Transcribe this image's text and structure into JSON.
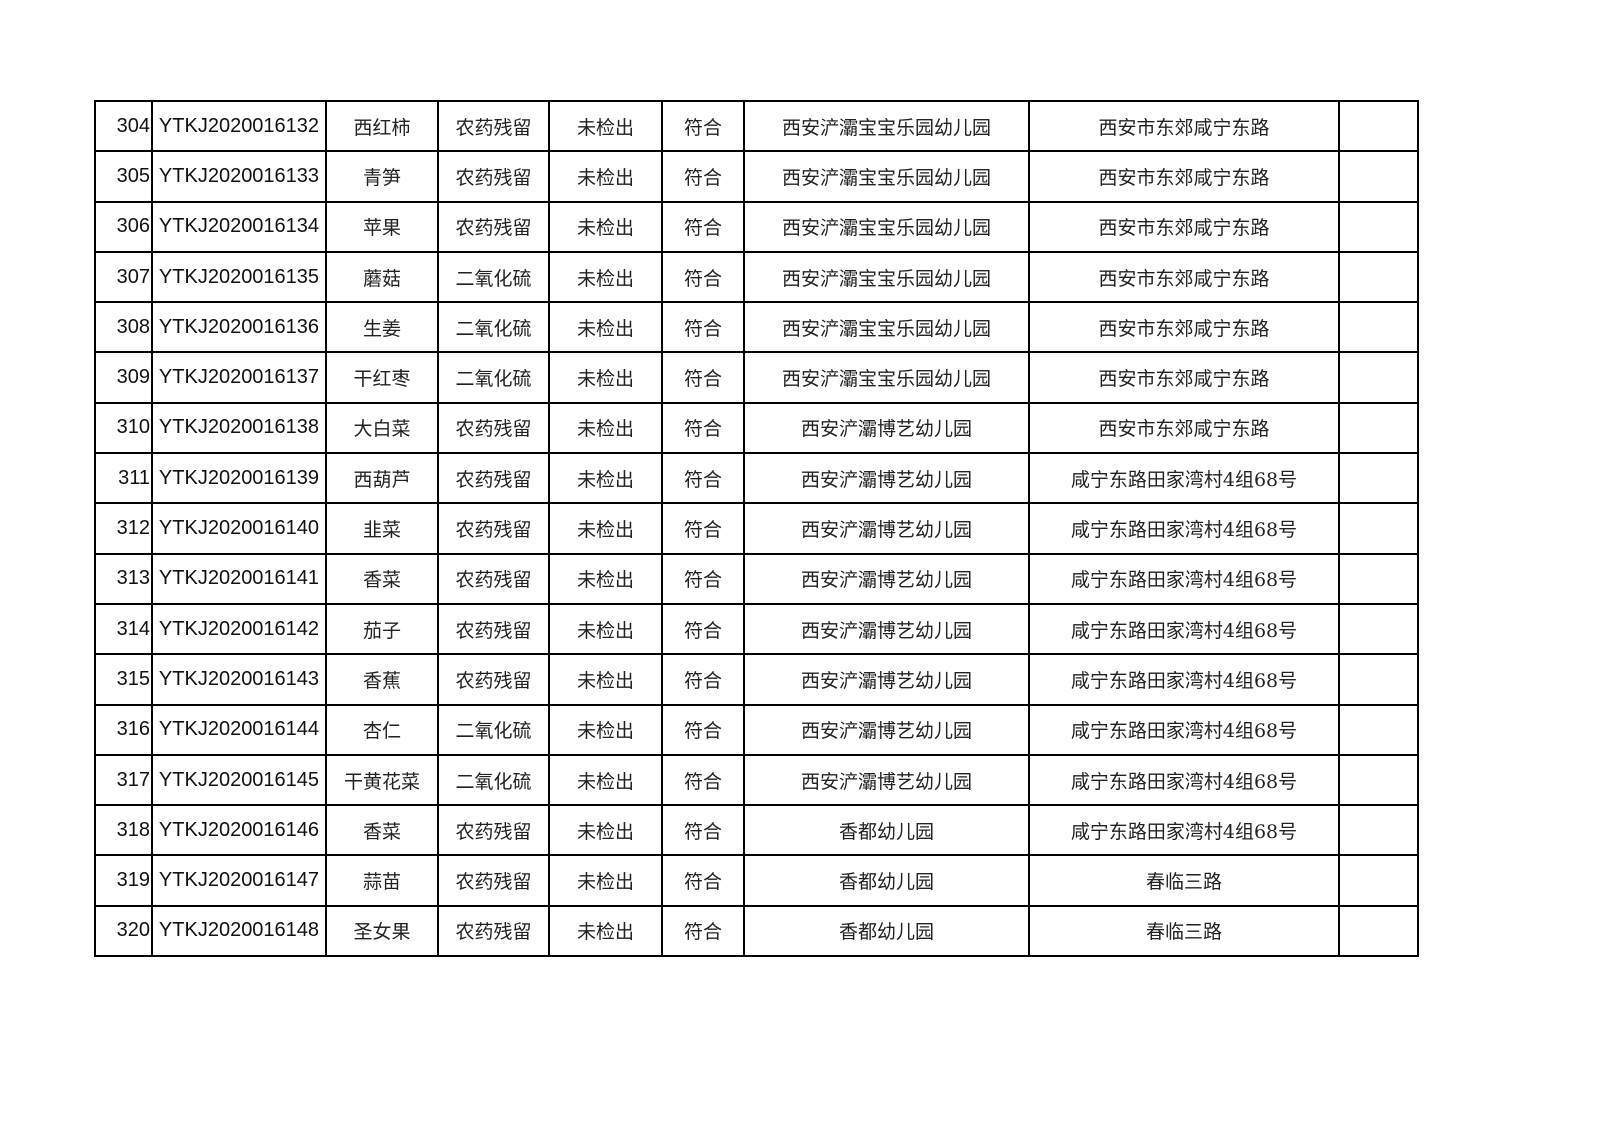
{
  "table": {
    "rows": [
      [
        "304",
        "YTKJ2020016132",
        "西红柿",
        "农药残留",
        "未检出",
        "符合",
        "西安浐灞宝宝乐园幼儿园",
        "西安市东郊咸宁东路",
        ""
      ],
      [
        "305",
        "YTKJ2020016133",
        "青笋",
        "农药残留",
        "未检出",
        "符合",
        "西安浐灞宝宝乐园幼儿园",
        "西安市东郊咸宁东路",
        ""
      ],
      [
        "306",
        "YTKJ2020016134",
        "苹果",
        "农药残留",
        "未检出",
        "符合",
        "西安浐灞宝宝乐园幼儿园",
        "西安市东郊咸宁东路",
        ""
      ],
      [
        "307",
        "YTKJ2020016135",
        "蘑菇",
        "二氧化硫",
        "未检出",
        "符合",
        "西安浐灞宝宝乐园幼儿园",
        "西安市东郊咸宁东路",
        ""
      ],
      [
        "308",
        "YTKJ2020016136",
        "生姜",
        "二氧化硫",
        "未检出",
        "符合",
        "西安浐灞宝宝乐园幼儿园",
        "西安市东郊咸宁东路",
        ""
      ],
      [
        "309",
        "YTKJ2020016137",
        "干红枣",
        "二氧化硫",
        "未检出",
        "符合",
        "西安浐灞宝宝乐园幼儿园",
        "西安市东郊咸宁东路",
        ""
      ],
      [
        "310",
        "YTKJ2020016138",
        "大白菜",
        "农药残留",
        "未检出",
        "符合",
        "西安浐灞博艺幼儿园",
        "西安市东郊咸宁东路",
        ""
      ],
      [
        "311",
        "YTKJ2020016139",
        "西葫芦",
        "农药残留",
        "未检出",
        "符合",
        "西安浐灞博艺幼儿园",
        "咸宁东路田家湾村4组68号",
        ""
      ],
      [
        "312",
        "YTKJ2020016140",
        "韭菜",
        "农药残留",
        "未检出",
        "符合",
        "西安浐灞博艺幼儿园",
        "咸宁东路田家湾村4组68号",
        ""
      ],
      [
        "313",
        "YTKJ2020016141",
        "香菜",
        "农药残留",
        "未检出",
        "符合",
        "西安浐灞博艺幼儿园",
        "咸宁东路田家湾村4组68号",
        ""
      ],
      [
        "314",
        "YTKJ2020016142",
        "茄子",
        "农药残留",
        "未检出",
        "符合",
        "西安浐灞博艺幼儿园",
        "咸宁东路田家湾村4组68号",
        ""
      ],
      [
        "315",
        "YTKJ2020016143",
        "香蕉",
        "农药残留",
        "未检出",
        "符合",
        "西安浐灞博艺幼儿园",
        "咸宁东路田家湾村4组68号",
        ""
      ],
      [
        "316",
        "YTKJ2020016144",
        "杏仁",
        "二氧化硫",
        "未检出",
        "符合",
        "西安浐灞博艺幼儿园",
        "咸宁东路田家湾村4组68号",
        ""
      ],
      [
        "317",
        "YTKJ2020016145",
        "干黄花菜",
        "二氧化硫",
        "未检出",
        "符合",
        "西安浐灞博艺幼儿园",
        "咸宁东路田家湾村4组68号",
        ""
      ],
      [
        "318",
        "YTKJ2020016146",
        "香菜",
        "农药残留",
        "未检出",
        "符合",
        "香都幼儿园",
        "咸宁东路田家湾村4组68号",
        ""
      ],
      [
        "319",
        "YTKJ2020016147",
        "蒜苗",
        "农药残留",
        "未检出",
        "符合",
        "香都幼儿园",
        "春临三路",
        ""
      ],
      [
        "320",
        "YTKJ2020016148",
        "圣女果",
        "农药残留",
        "未检出",
        "符合",
        "香都幼儿园",
        "春临三路",
        ""
      ]
    ]
  }
}
